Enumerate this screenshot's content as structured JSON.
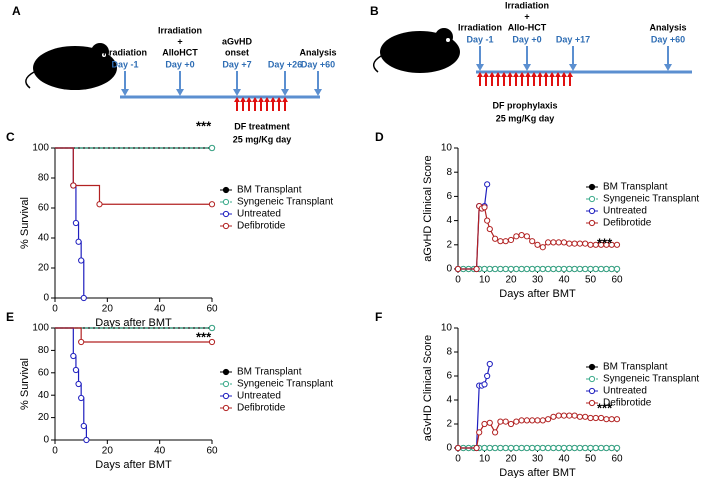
{
  "timelines": [
    {
      "label": "A",
      "events": [
        {
          "title": [
            "Irradiation"
          ],
          "day": "Day -1"
        },
        {
          "title": [
            "Irradiation",
            "+",
            "AlloHCT"
          ],
          "day": "Day +0"
        },
        {
          "title": [
            "aGvHD",
            "onset"
          ],
          "day": "Day +7"
        },
        {
          "title": [],
          "day": "Day +26"
        },
        {
          "title": [
            "Analysis"
          ],
          "day": "Day +60"
        }
      ],
      "treatment": [
        "DF treatment",
        "25 mg/Kg day"
      ]
    },
    {
      "label": "B",
      "events": [
        {
          "title": [
            "Irradiation"
          ],
          "day": "Day -1"
        },
        {
          "title": [
            "Irradiation",
            "+",
            "Allo-HCT"
          ],
          "day": "Day +0"
        },
        {
          "title": [],
          "day": "Day +17"
        },
        {
          "title": [
            "Analysis"
          ],
          "day": "Day +60"
        }
      ],
      "treatment": [
        "DF prophylaxis",
        "25 mg/Kg day"
      ]
    }
  ],
  "chart_data": [
    {
      "type": "line",
      "label": "C",
      "step": true,
      "xlabel": "Days after BMT",
      "ylabel": "% Survival",
      "annotation": "***",
      "xlim": [
        0,
        60
      ],
      "xticks": [
        0,
        20,
        40,
        60
      ],
      "ylim": [
        0,
        100
      ],
      "yticks": [
        0,
        20,
        40,
        60,
        80,
        100
      ],
      "series": [
        {
          "name": "BM Transplant",
          "color": "#000000",
          "marker": "filled",
          "dash": false,
          "x": [
            0,
            60
          ],
          "values": [
            100,
            100
          ]
        },
        {
          "name": "Syngeneic Transplant",
          "color": "#3aaa8a",
          "marker": "open",
          "dash": true,
          "x": [
            0,
            60
          ],
          "values": [
            100,
            100
          ]
        },
        {
          "name": "Untreated",
          "color": "#1f1fbf",
          "marker": "open",
          "dash": false,
          "x": [
            0,
            7,
            8,
            9,
            10,
            11
          ],
          "values": [
            100,
            75,
            50,
            37.5,
            25,
            0
          ]
        },
        {
          "name": "Defibrotide",
          "color": "#b22222",
          "marker": "open",
          "dash": false,
          "x": [
            0,
            7,
            17,
            60
          ],
          "values": [
            100,
            75,
            62.5,
            62.5
          ]
        }
      ]
    },
    {
      "type": "line",
      "label": "D",
      "step": false,
      "xlabel": "Days after BMT",
      "ylabel": "aGvHD Clinical Score",
      "annotation": "***",
      "xlim": [
        0,
        60
      ],
      "xticks": [
        0,
        10,
        20,
        30,
        40,
        50,
        60
      ],
      "ylim": [
        0,
        10
      ],
      "yticks": [
        0,
        2,
        4,
        6,
        8,
        10
      ],
      "series": [
        {
          "name": "BM Transplant",
          "color": "#000000",
          "marker": "filled",
          "dash": false,
          "x": [
            0,
            2,
            4,
            6,
            8,
            10,
            12,
            14,
            16,
            18,
            20,
            22,
            24,
            26,
            28,
            30,
            32,
            34,
            36,
            38,
            40,
            42,
            44,
            46,
            48,
            50,
            52,
            54,
            56,
            58,
            60
          ],
          "values": [
            0,
            0,
            0,
            0,
            0,
            0,
            0,
            0,
            0,
            0,
            0,
            0,
            0,
            0,
            0,
            0,
            0,
            0,
            0,
            0,
            0,
            0,
            0,
            0,
            0,
            0,
            0,
            0,
            0,
            0,
            0
          ]
        },
        {
          "name": "Syngeneic Transplant",
          "color": "#3aaa8a",
          "marker": "open",
          "dash": true,
          "x": [
            0,
            2,
            4,
            6,
            8,
            10,
            12,
            14,
            16,
            18,
            20,
            22,
            24,
            26,
            28,
            30,
            32,
            34,
            36,
            38,
            40,
            42,
            44,
            46,
            48,
            50,
            52,
            54,
            56,
            58,
            60
          ],
          "values": [
            0,
            0,
            0,
            0,
            0,
            0,
            0,
            0,
            0,
            0,
            0,
            0,
            0,
            0,
            0,
            0,
            0,
            0,
            0,
            0,
            0,
            0,
            0,
            0,
            0,
            0,
            0,
            0,
            0,
            0,
            0
          ]
        },
        {
          "name": "Untreated",
          "color": "#1f1fbf",
          "marker": "open",
          "dash": false,
          "x": [
            0,
            7,
            8,
            9,
            10,
            11
          ],
          "values": [
            0,
            0,
            5.2,
            5,
            5.2,
            7
          ]
        },
        {
          "name": "Defibrotide",
          "color": "#b22222",
          "marker": "open",
          "dash": false,
          "x": [
            0,
            7,
            8,
            9,
            10,
            11,
            12,
            14,
            16,
            18,
            20,
            22,
            24,
            26,
            28,
            30,
            32,
            34,
            36,
            38,
            40,
            42,
            44,
            46,
            48,
            50,
            52,
            54,
            56,
            58,
            60
          ],
          "values": [
            0,
            0,
            5.2,
            5,
            5.1,
            4,
            3.3,
            2.5,
            2.3,
            2.3,
            2.4,
            2.7,
            2.8,
            2.7,
            2.3,
            2,
            1.8,
            2.2,
            2.2,
            2.2,
            2.2,
            2.1,
            2.1,
            2.1,
            2.1,
            2,
            2,
            2,
            2,
            2,
            2
          ]
        }
      ]
    },
    {
      "type": "line",
      "label": "E",
      "step": true,
      "xlabel": "Days after BMT",
      "ylabel": "% Survival",
      "annotation": "***",
      "xlim": [
        0,
        60
      ],
      "xticks": [
        0,
        20,
        40,
        60
      ],
      "ylim": [
        0,
        100
      ],
      "yticks": [
        0,
        20,
        40,
        60,
        80,
        100
      ],
      "series": [
        {
          "name": "BM Transplant",
          "color": "#000000",
          "marker": "filled",
          "dash": false,
          "x": [
            0,
            60
          ],
          "values": [
            100,
            100
          ]
        },
        {
          "name": "Syngeneic Transplant",
          "color": "#3aaa8a",
          "marker": "open",
          "dash": true,
          "x": [
            0,
            60
          ],
          "values": [
            100,
            100
          ]
        },
        {
          "name": "Untreated",
          "color": "#1f1fbf",
          "marker": "open",
          "dash": false,
          "x": [
            0,
            7,
            8,
            9,
            10,
            11,
            12
          ],
          "values": [
            100,
            75,
            62.5,
            50,
            37.5,
            12.5,
            0
          ]
        },
        {
          "name": "Defibrotide",
          "color": "#b22222",
          "marker": "open",
          "dash": false,
          "x": [
            0,
            10,
            60
          ],
          "values": [
            100,
            87.5,
            87.5
          ]
        }
      ]
    },
    {
      "type": "line",
      "label": "F",
      "step": false,
      "xlabel": "Days after BMT",
      "ylabel": "aGvHD Clinical Score",
      "annotation": "***",
      "xlim": [
        0,
        60
      ],
      "xticks": [
        0,
        10,
        20,
        30,
        40,
        50,
        60
      ],
      "ylim": [
        0,
        10
      ],
      "yticks": [
        0,
        2,
        4,
        6,
        8,
        10
      ],
      "series": [
        {
          "name": "BM Transplant",
          "color": "#000000",
          "marker": "filled",
          "dash": false,
          "x": [
            0,
            2,
            4,
            6,
            8,
            10,
            12,
            14,
            16,
            18,
            20,
            22,
            24,
            26,
            28,
            30,
            32,
            34,
            36,
            38,
            40,
            42,
            44,
            46,
            48,
            50,
            52,
            54,
            56,
            58,
            60
          ],
          "values": [
            0,
            0,
            0,
            0,
            0,
            0,
            0,
            0,
            0,
            0,
            0,
            0,
            0,
            0,
            0,
            0,
            0,
            0,
            0,
            0,
            0,
            0,
            0,
            0,
            0,
            0,
            0,
            0,
            0,
            0,
            0
          ]
        },
        {
          "name": "Syngeneic Transplant",
          "color": "#3aaa8a",
          "marker": "open",
          "dash": true,
          "x": [
            0,
            2,
            4,
            6,
            8,
            10,
            12,
            14,
            16,
            18,
            20,
            22,
            24,
            26,
            28,
            30,
            32,
            34,
            36,
            38,
            40,
            42,
            44,
            46,
            48,
            50,
            52,
            54,
            56,
            58,
            60
          ],
          "values": [
            0,
            0,
            0,
            0,
            0,
            0,
            0,
            0,
            0,
            0,
            0,
            0,
            0,
            0,
            0,
            0,
            0,
            0,
            0,
            0,
            0,
            0,
            0,
            0,
            0,
            0,
            0,
            0,
            0,
            0,
            0
          ]
        },
        {
          "name": "Untreated",
          "color": "#1f1fbf",
          "marker": "open",
          "dash": false,
          "x": [
            0,
            7,
            8,
            9,
            10,
            11,
            12
          ],
          "values": [
            0,
            0,
            5.2,
            5.2,
            5.3,
            6,
            7
          ]
        },
        {
          "name": "Defibrotide",
          "color": "#b22222",
          "marker": "open",
          "dash": false,
          "x": [
            0,
            7,
            8,
            10,
            12,
            14,
            16,
            18,
            20,
            22,
            24,
            26,
            28,
            30,
            32,
            34,
            36,
            38,
            40,
            42,
            44,
            46,
            48,
            50,
            52,
            54,
            56,
            58,
            60
          ],
          "values": [
            0,
            0,
            1.3,
            2,
            2.1,
            1.3,
            2.2,
            2.2,
            2,
            2.2,
            2.3,
            2.3,
            2.3,
            2.3,
            2.3,
            2.4,
            2.6,
            2.7,
            2.7,
            2.7,
            2.7,
            2.6,
            2.6,
            2.5,
            2.5,
            2.5,
            2.4,
            2.4,
            2.4
          ]
        }
      ]
    }
  ]
}
